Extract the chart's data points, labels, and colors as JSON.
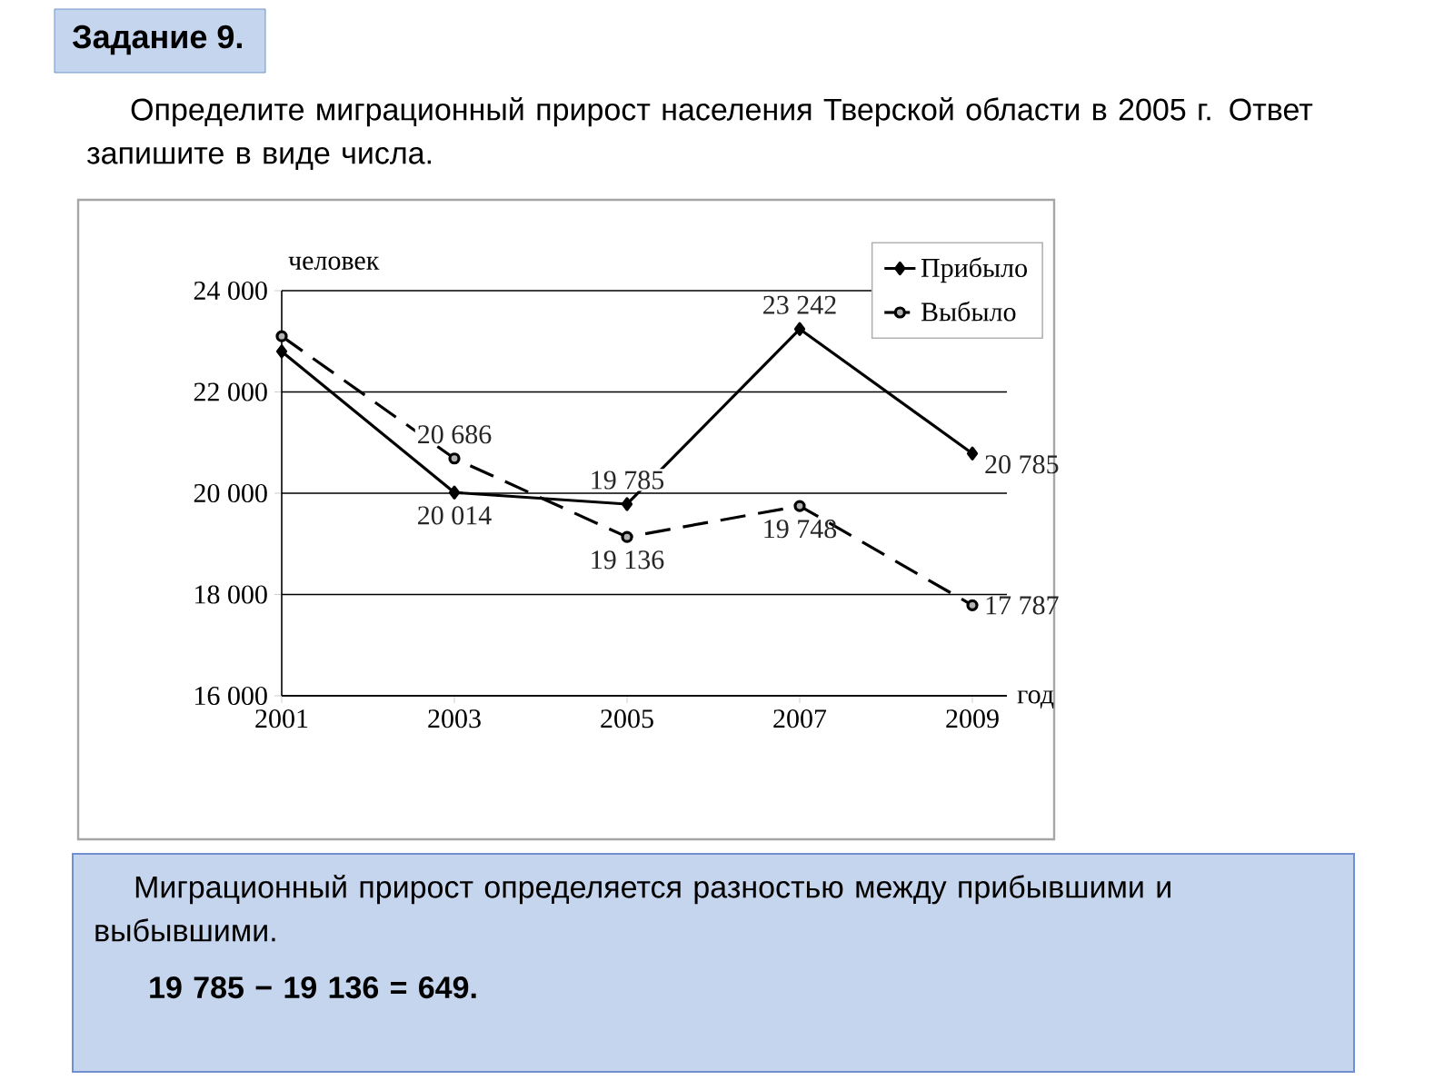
{
  "chart_data": {
    "type": "line",
    "title": "Задание 9.",
    "subtitle": "Определите миграционный прирост населения Тверской области в 2005 г. Ответ запишите в виде числа.",
    "xlabel": "год",
    "ylabel": "человек",
    "categories": [
      "2001",
      "2003",
      "2005",
      "2007",
      "2009"
    ],
    "series": [
      {
        "name": "Прибыло",
        "color": "#000000",
        "marker": "diamond",
        "line_style": "solid",
        "values": [
          22800,
          20014,
          19785,
          23242,
          20785
        ],
        "value_labels": [
          null,
          "20 014",
          "19 785",
          "23 242",
          "20 785"
        ]
      },
      {
        "name": "Выбыло",
        "color": "#000000",
        "marker": "circle",
        "line_style": "dashed",
        "values": [
          23100,
          20686,
          19136,
          19748,
          17787
        ],
        "value_labels": [
          null,
          "20 686",
          "19 136",
          "19 748",
          "17 787"
        ]
      }
    ],
    "ylim": [
      16000,
      24000
    ],
    "yticks": [
      {
        "value": 16000,
        "label": "16 000"
      },
      {
        "value": 18000,
        "label": "18 000"
      },
      {
        "value": 20000,
        "label": "20 000"
      },
      {
        "value": 22000,
        "label": "22 000"
      },
      {
        "value": 24000,
        "label": "24 000"
      }
    ],
    "grid": "y",
    "legend": "top right",
    "annotations": [
      "Миграционный прирост определяется разностью между прибывшими и выбывшими.",
      "19 785 − 19 136 = 649."
    ]
  }
}
